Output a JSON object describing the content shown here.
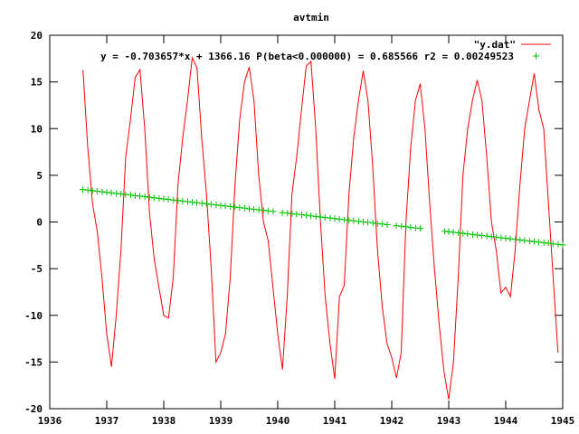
{
  "chart_data": {
    "type": "line",
    "title": "avtmin",
    "xlim": [
      1936,
      1945
    ],
    "ylim": [
      -20,
      20
    ],
    "xticks": [
      1936,
      1937,
      1938,
      1939,
      1940,
      1941,
      1942,
      1943,
      1944,
      1945
    ],
    "yticks": [
      -20,
      -15,
      -10,
      -5,
      0,
      5,
      10,
      15,
      20
    ],
    "grid": false,
    "legend_placement": "top-right",
    "colors": {
      "data": "#ff0000",
      "fit": "#00c000"
    },
    "series": [
      {
        "name": "\"y.dat\"",
        "style": "line",
        "x_start": 1936.583,
        "x_step_months": 1,
        "values": [
          16.3,
          8,
          2,
          -1,
          -6,
          -12,
          -15.5,
          -10,
          -3,
          7,
          11,
          15.5,
          16.3,
          10,
          1,
          -4,
          -7,
          -10,
          -10.3,
          -6,
          4,
          9,
          13,
          17.6,
          16.5,
          9,
          3,
          -5,
          -15,
          -14,
          -12,
          -6,
          4,
          11,
          15,
          16.6,
          13,
          5,
          0,
          -2,
          -7,
          -12,
          -15.8,
          -8,
          3,
          7,
          12,
          16.7,
          17.2,
          10,
          0,
          -8,
          -13,
          -16.8,
          -8,
          -6.8,
          3,
          9,
          13,
          16.2,
          13,
          6,
          -3,
          -9,
          -13,
          -14.5,
          -16.7,
          -14,
          0,
          8,
          13,
          14.8,
          10,
          2,
          -5,
          -11,
          -16,
          -19,
          -15,
          -6,
          5,
          10,
          13,
          15.2,
          13,
          7,
          0,
          -3,
          -7.6,
          -7,
          -8,
          -3,
          4,
          10,
          13,
          15.9,
          12,
          10,
          2,
          -6,
          -14
        ]
      },
      {
        "name": "y = -0.703657*x + 1366.16 P(beta<0.000000) = 0.685566 r2 = 0.00249523",
        "style": "points",
        "slope": -0.703657,
        "intercept": 1366.16,
        "x": [
          1936.58,
          1936.67,
          1936.75,
          1936.83,
          1936.92,
          1937.0,
          1937.08,
          1937.17,
          1937.25,
          1937.33,
          1937.42,
          1937.5,
          1937.58,
          1937.67,
          1937.75,
          1937.83,
          1937.92,
          1938.0,
          1938.08,
          1938.17,
          1938.25,
          1938.33,
          1938.42,
          1938.5,
          1938.58,
          1938.67,
          1938.75,
          1938.83,
          1938.92,
          1939.0,
          1939.08,
          1939.17,
          1939.25,
          1939.33,
          1939.42,
          1939.5,
          1939.58,
          1939.67,
          1939.75,
          1939.83,
          1939.92,
          1940.08,
          1940.17,
          1940.25,
          1940.33,
          1940.42,
          1940.5,
          1940.58,
          1940.67,
          1940.75,
          1940.83,
          1940.92,
          1941.0,
          1941.08,
          1941.17,
          1941.25,
          1941.33,
          1941.42,
          1941.5,
          1941.58,
          1941.67,
          1941.75,
          1941.83,
          1941.92,
          1942.08,
          1942.17,
          1942.25,
          1942.33,
          1942.42,
          1942.5,
          1942.93,
          1943.0,
          1943.08,
          1943.17,
          1943.25,
          1943.33,
          1943.42,
          1943.5,
          1943.58,
          1943.67,
          1943.75,
          1943.83,
          1943.92,
          1944.0,
          1944.08,
          1944.17,
          1944.25,
          1944.33,
          1944.42,
          1944.5,
          1944.58,
          1944.67,
          1944.75,
          1944.83,
          1944.92,
          1945.0
        ]
      }
    ]
  }
}
